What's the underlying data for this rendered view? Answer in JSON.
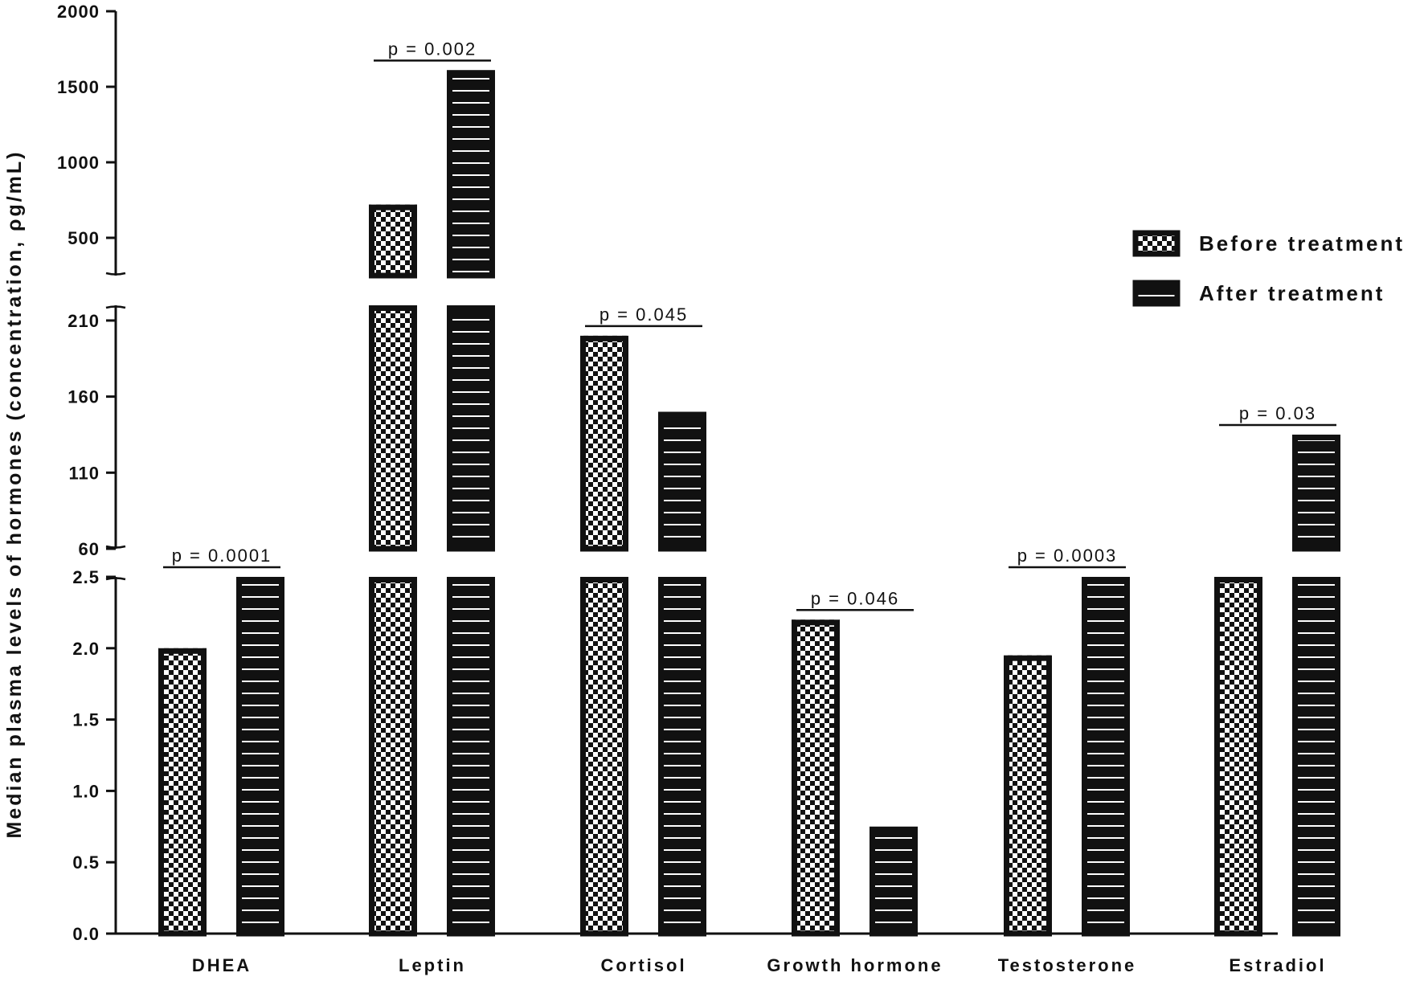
{
  "chart_data": {
    "type": "bar",
    "ylabel": "Median plasma levels of hormones (concentration, ρg/mL)",
    "categories": [
      "DHEA",
      "Leptin",
      "Cortisol",
      "Growth hormone",
      "Testosterone",
      "Estradiol"
    ],
    "series": [
      {
        "name": "Before treatment",
        "pattern": "checkerboard",
        "values": [
          2.0,
          720,
          200,
          2.2,
          1.95,
          2.5
        ]
      },
      {
        "name": "After treatment",
        "pattern": "horizontal-stripes",
        "values": [
          2.5,
          1610,
          150,
          0.75,
          2.5,
          135
        ]
      }
    ],
    "axis_segments": [
      {
        "range": [
          0,
          2.5
        ],
        "ticks": [
          0.0,
          0.5,
          1.0,
          1.5,
          2.0,
          2.5
        ],
        "tick_labels": [
          "0.0",
          "0.5",
          "1.0",
          "1.5",
          "2.0",
          "2.5"
        ]
      },
      {
        "range": [
          60,
          220
        ],
        "ticks": [
          60,
          110,
          160,
          210
        ],
        "tick_labels": [
          "60",
          "110",
          "160",
          "210"
        ]
      },
      {
        "range": [
          250,
          2000
        ],
        "ticks": [
          500,
          1000,
          1500,
          2000
        ],
        "tick_labels": [
          "500",
          "1000",
          "1500",
          "2000"
        ]
      }
    ],
    "annotations": [
      {
        "category": "DHEA",
        "text": "p = 0.0001"
      },
      {
        "category": "Leptin",
        "text": "p = 0.002"
      },
      {
        "category": "Cortisol",
        "text": "p = 0.045"
      },
      {
        "category": "Growth hormone",
        "text": "p = 0.046"
      },
      {
        "category": "Testosterone",
        "text": "p = 0.0003"
      },
      {
        "category": "Estradiol",
        "text": "p = 0.03"
      }
    ],
    "legend_position": "right",
    "grid": false
  }
}
